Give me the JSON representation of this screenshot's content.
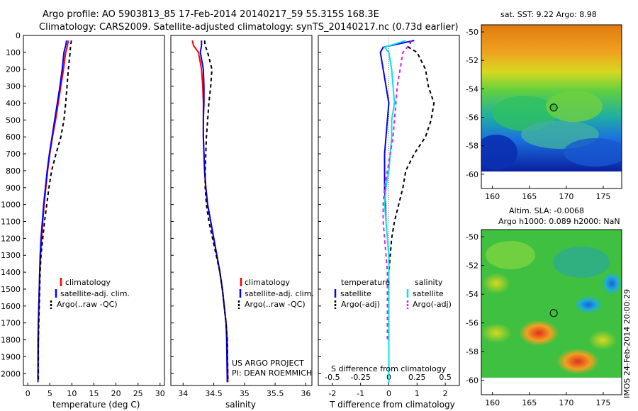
{
  "title": {
    "line1": "Argo profile: AO 5903813_85 17-Feb-2014 20140217_59 55.315S 168.3E",
    "line2": "Climatology: CARS2009. Satellite-adjusted climatology: synTS_20140217.nc (0.73d earlier)"
  },
  "colors": {
    "climatology": "#ff0000",
    "satellite": "#0000ff",
    "argo": "#000000",
    "sal_satellite": "#00e5e5",
    "sal_argo": "#e020e0"
  },
  "chart_data": [
    {
      "type": "line",
      "id": "temperature",
      "xlabel": "temperature (deg C)",
      "ylabel": "",
      "xlim": [
        -1,
        31
      ],
      "ylim": [
        2070,
        0
      ],
      "xticks": [
        0,
        5,
        10,
        15,
        20,
        25,
        30
      ],
      "yticks": [
        0,
        100,
        200,
        300,
        400,
        500,
        600,
        700,
        800,
        900,
        1000,
        1100,
        1200,
        1300,
        1400,
        1500,
        1600,
        1700,
        1800,
        1900,
        2000
      ],
      "legend": [
        "climatology",
        "satellite-adj. clim.",
        "Argo(..raw -QC)"
      ],
      "series": [
        {
          "name": "climatology",
          "color": "#ff0000",
          "dash": "",
          "x": [
            9.2,
            9.0,
            8.6,
            8.1,
            7.5,
            6.9,
            6.3,
            5.6,
            5.0,
            4.5,
            4.1,
            3.7,
            3.4,
            3.1,
            2.9,
            2.7,
            2.6,
            2.5,
            2.4,
            2.3,
            2.3
          ],
          "y": [
            30,
            60,
            100,
            200,
            300,
            400,
            500,
            600,
            700,
            800,
            900,
            1000,
            1100,
            1200,
            1300,
            1400,
            1500,
            1600,
            1700,
            1800,
            2050
          ]
        },
        {
          "name": "satellite-adj. clim.",
          "color": "#0000ff",
          "dash": "",
          "x": [
            8.8,
            8.6,
            8.2,
            7.8,
            7.3,
            6.7,
            6.1,
            5.5,
            4.9,
            4.4,
            4.0,
            3.6,
            3.3,
            3.0,
            2.8,
            2.7,
            2.6,
            2.5,
            2.4,
            2.4,
            2.3
          ],
          "y": [
            30,
            60,
            100,
            200,
            300,
            400,
            500,
            600,
            700,
            800,
            900,
            1000,
            1100,
            1200,
            1300,
            1400,
            1500,
            1600,
            1700,
            1800,
            2050
          ]
        },
        {
          "name": "Argo(..raw -QC)",
          "color": "#000000",
          "dash": "5,4",
          "x": [
            9.9,
            9.7,
            9.6,
            9.2,
            8.9,
            8.6,
            8.2,
            7.5,
            6.4,
            5.4,
            4.8,
            4.3,
            3.8,
            3.4,
            3.0,
            2.8,
            2.7,
            2.6,
            2.5,
            2.4,
            2.4
          ],
          "y": [
            30,
            60,
            100,
            200,
            300,
            400,
            500,
            600,
            700,
            800,
            900,
            1000,
            1100,
            1200,
            1300,
            1400,
            1500,
            1600,
            1700,
            1800,
            2050
          ]
        }
      ]
    },
    {
      "type": "line",
      "id": "salinity",
      "xlabel": "salinity",
      "ylabel": "",
      "xlim": [
        33.8,
        36.1
      ],
      "ylim": [
        2070,
        0
      ],
      "xticks": [
        34,
        34.5,
        35,
        35.5,
        36
      ],
      "annotations": [
        "US ARGO PROJECT",
        "PI: DEAN ROEMMICH"
      ],
      "legend": [
        "climatology",
        "satellite-adj. clim.",
        "Argo(..raw -QC)"
      ],
      "series": [
        {
          "name": "climatology",
          "color": "#ff0000",
          "dash": "",
          "x": [
            34.15,
            34.17,
            34.25,
            34.3,
            34.32,
            34.33,
            34.33,
            34.33,
            34.34,
            34.35,
            34.37,
            34.4,
            34.45,
            34.5,
            34.55,
            34.6,
            34.64,
            34.67,
            34.7,
            34.72,
            34.73
          ],
          "y": [
            30,
            60,
            100,
            200,
            300,
            400,
            500,
            600,
            700,
            800,
            900,
            1000,
            1100,
            1200,
            1300,
            1400,
            1500,
            1600,
            1700,
            1800,
            2050
          ]
        },
        {
          "name": "satellite-adj. clim.",
          "color": "#0000ff",
          "dash": "",
          "x": [
            34.3,
            34.3,
            34.28,
            34.33,
            34.34,
            34.34,
            34.33,
            34.33,
            34.34,
            34.35,
            34.37,
            34.4,
            34.45,
            34.5,
            34.55,
            34.6,
            34.64,
            34.67,
            34.7,
            34.71,
            34.72
          ],
          "y": [
            30,
            60,
            100,
            200,
            300,
            400,
            500,
            600,
            700,
            800,
            900,
            1000,
            1100,
            1200,
            1300,
            1400,
            1500,
            1600,
            1700,
            1800,
            2050
          ]
        },
        {
          "name": "Argo(..raw -QC)",
          "color": "#000000",
          "dash": "5,4",
          "x": [
            34.35,
            34.36,
            34.4,
            34.47,
            34.45,
            34.42,
            34.4,
            34.38,
            34.37,
            34.36,
            34.36,
            34.38,
            34.42,
            34.48,
            34.54,
            34.6,
            34.64,
            34.67,
            34.7,
            34.72,
            34.73
          ],
          "y": [
            30,
            60,
            100,
            200,
            300,
            400,
            500,
            600,
            700,
            800,
            900,
            1000,
            1100,
            1200,
            1300,
            1400,
            1500,
            1600,
            1700,
            1800,
            2050
          ]
        }
      ]
    },
    {
      "type": "line",
      "id": "difference",
      "xlabel": "T difference from climatology",
      "xlabel_top": "S difference from climatology",
      "ylabel": "",
      "xlim": [
        -2.5,
        2.5
      ],
      "ylim": [
        2070,
        0
      ],
      "xticks_T": [
        -2,
        -1,
        0,
        1,
        2
      ],
      "xticks_S": [
        "-0.5",
        "-0.25",
        "0",
        "0.25",
        "0.5"
      ],
      "legend_temperature": {
        "title": "temperature",
        "items": [
          "satellite",
          "Argo(-adj)"
        ]
      },
      "legend_salinity": {
        "title": "salinity",
        "items": [
          "satellite",
          "Argo(-adj)"
        ]
      },
      "series": [
        {
          "name": "temperature satellite",
          "color": "#0000ff",
          "dash": "",
          "x": [
            0.9,
            -0.2,
            -0.3,
            -0.2,
            -0.1,
            0.0,
            -0.05,
            -0.1,
            -0.15,
            -0.15,
            -0.15,
            -0.12,
            -0.1
          ],
          "y": [
            30,
            70,
            100,
            200,
            300,
            400,
            500,
            600,
            700,
            800,
            900,
            1000,
            1100
          ]
        },
        {
          "name": "temperature Argo(-adj)",
          "color": "#000000",
          "dash": "5,4",
          "x": [
            0.8,
            0.7,
            1.0,
            1.3,
            1.4,
            1.6,
            1.5,
            1.3,
            0.9,
            0.6,
            0.5,
            0.35,
            0.2,
            0.1,
            0.05,
            0.0,
            0.0,
            0.0,
            0.0,
            0.0,
            0.0
          ],
          "y": [
            30,
            70,
            100,
            200,
            300,
            400,
            500,
            600,
            700,
            800,
            900,
            1000,
            1100,
            1200,
            1300,
            1400,
            1500,
            1600,
            1700,
            1800,
            2050
          ]
        },
        {
          "name": "salinity satellite",
          "color": "#00e5e5",
          "dash": "",
          "x": [
            0.6,
            -0.15,
            0.0,
            0.1,
            0.15,
            0.2,
            0.1,
            0.1,
            0.05,
            0.0,
            -0.1,
            -0.15,
            -0.1,
            -0.05,
            0.0,
            0.0,
            0.0,
            0.0,
            0.0,
            0.0,
            0.0
          ],
          "y": [
            30,
            70,
            100,
            200,
            300,
            400,
            500,
            600,
            700,
            800,
            900,
            1000,
            1100,
            1200,
            1300,
            1400,
            1500,
            1600,
            1700,
            1800,
            2050
          ]
        },
        {
          "name": "salinity Argo(-adj)",
          "color": "#e020e0",
          "dash": "5,4",
          "x": [
            0.8,
            0.65,
            0.5,
            0.4,
            0.3,
            0.25,
            0.2,
            0.15,
            0.05,
            -0.05,
            -0.15,
            -0.2,
            -0.2,
            -0.15,
            -0.1,
            -0.05,
            -0.05,
            -0.05,
            -0.05,
            -0.05
          ],
          "y": [
            30,
            70,
            100,
            200,
            300,
            400,
            500,
            600,
            700,
            800,
            900,
            1000,
            1100,
            1200,
            1300,
            1400,
            1500,
            1600,
            1700,
            1800
          ]
        }
      ]
    },
    {
      "type": "heatmap",
      "id": "sst-map",
      "title": "sat. SST: 9.22 Argo: 8.98",
      "xlim": [
        158.5,
        177.5
      ],
      "ylim": [
        -61,
        -49.5
      ],
      "xticks": [
        160,
        165,
        170,
        175
      ],
      "yticks": [
        -50,
        -52,
        -54,
        -56,
        -58,
        -60
      ],
      "profile_location": {
        "lon": 168.3,
        "lat": -55.315
      }
    },
    {
      "type": "heatmap",
      "id": "sla-map",
      "title_line1": "Altim. SLA: -0.0068",
      "title_line2": "Argo h1000: 0.089 h2000: NaN",
      "xlim": [
        158.5,
        177.5
      ],
      "ylim": [
        -61,
        -49.5
      ],
      "xticks": [
        160,
        165,
        170,
        175
      ],
      "yticks": [
        -50,
        -52,
        -54,
        -56,
        -58,
        -60
      ],
      "profile_location": {
        "lon": 168.3,
        "lat": -55.315
      }
    }
  ],
  "side_label": "IMOS 24-Feb-2014 20:00:29"
}
